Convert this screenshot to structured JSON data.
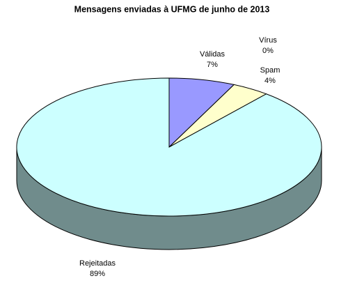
{
  "chart_data": {
    "type": "pie",
    "title": "Mensagens enviadas à UFMG de junho de 2013",
    "categories": [
      "Válidas",
      "Vírus",
      "Spam",
      "Rejeitadas"
    ],
    "values": [
      7,
      0,
      4,
      89
    ],
    "value_labels": [
      "7%",
      "0%",
      "4%",
      "89%"
    ],
    "colors": [
      "#9999ff",
      "#993366",
      "#ffffcc",
      "#ccffff"
    ]
  }
}
